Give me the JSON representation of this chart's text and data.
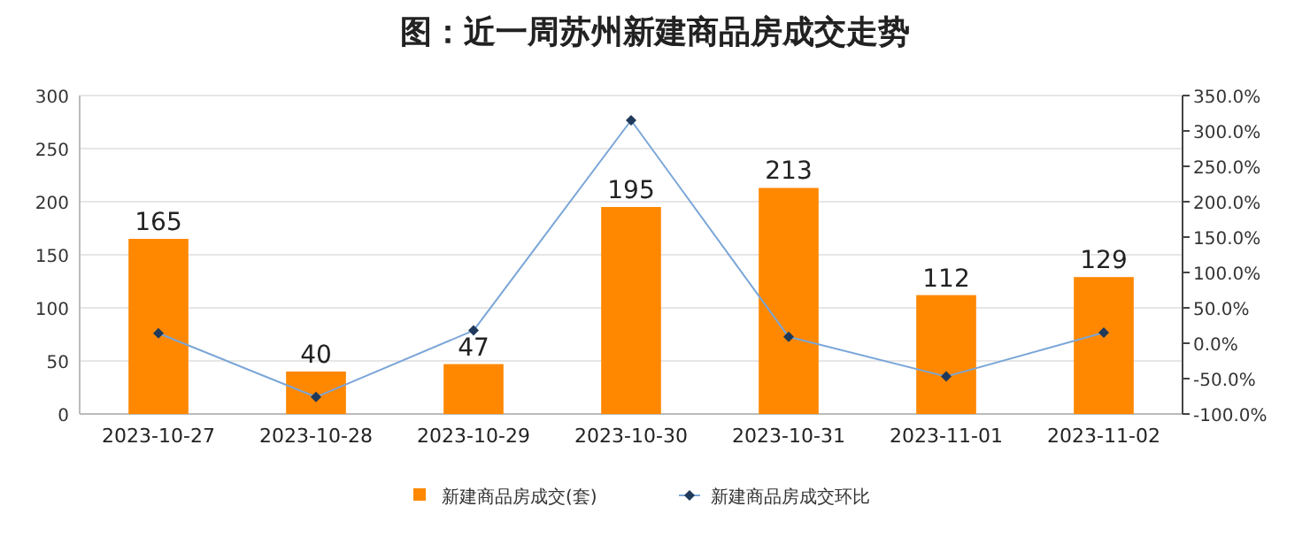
{
  "chart_data": {
    "type": "bar",
    "title": "图：近一周苏州新建商品房成交走势",
    "categories": [
      "2023-10-27",
      "2023-10-28",
      "2023-10-29",
      "2023-10-30",
      "2023-10-31",
      "2023-11-01",
      "2023-11-02"
    ],
    "series": [
      {
        "name": "新建商品房成交(套)",
        "color": "#ff8800",
        "values": [
          165,
          40,
          47,
          195,
          213,
          112,
          129
        ],
        "value_labels": [
          "165",
          "40",
          "47",
          "195",
          "213",
          "112",
          "129"
        ]
      },
      {
        "name": "新建商品房成交环比",
        "type": "line",
        "axis": "y2",
        "color": "#7aa6d8",
        "marker": "diamond",
        "values": [
          14,
          -76,
          18,
          315,
          9,
          -47,
          15
        ]
      }
    ],
    "ylim": [
      0,
      300
    ],
    "yticks": [
      0,
      50,
      100,
      150,
      200,
      250,
      300
    ],
    "y2lim": [
      -100,
      350
    ],
    "y2ticks": [
      {
        "value": -100,
        "label": "-100.0%"
      },
      {
        "value": -50,
        "label": "-50.0%"
      },
      {
        "value": 0,
        "label": "0.0%"
      },
      {
        "value": 50,
        "label": "50.0%"
      },
      {
        "value": 100,
        "label": "100.0%"
      },
      {
        "value": 150,
        "label": "150.0%"
      },
      {
        "value": 200,
        "label": "200.0%"
      },
      {
        "value": 250,
        "label": "250.0%"
      },
      {
        "value": 300,
        "label": "300.0%"
      },
      {
        "value": 350,
        "label": "350.0%"
      }
    ],
    "grid": "y",
    "legend": "bottom"
  }
}
